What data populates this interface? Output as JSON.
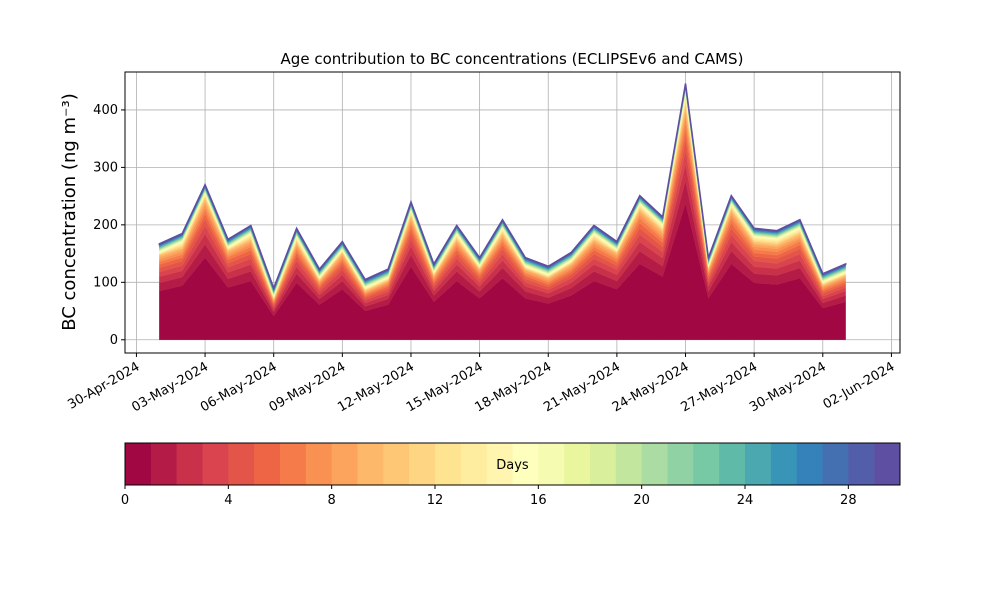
{
  "chart_data": {
    "type": "stacked_area",
    "title": "Age contribution to BC concentrations (ECLIPSEv6 and CAMS)",
    "y_label": "BC concentration (ng m⁻³)",
    "x": [
      "2024-05-01",
      "2024-05-02",
      "2024-05-03",
      "2024-05-04",
      "2024-05-05",
      "2024-05-06",
      "2024-05-07",
      "2024-05-08",
      "2024-05-09",
      "2024-05-10",
      "2024-05-11",
      "2024-05-12",
      "2024-05-13",
      "2024-05-14",
      "2024-05-15",
      "2024-05-16",
      "2024-05-17",
      "2024-05-18",
      "2024-05-19",
      "2024-05-20",
      "2024-05-21",
      "2024-05-22",
      "2024-05-23",
      "2024-05-24",
      "2024-05-25",
      "2024-05-26",
      "2024-05-27",
      "2024-05-28",
      "2024-05-29",
      "2024-05-30",
      "2024-05-31"
    ],
    "xlim": [
      "2024-04-29T12:00Z",
      "2024-06-02T09:00Z"
    ],
    "xticks": [
      {
        "value": "2024-04-30",
        "label": "30-Apr-2024"
      },
      {
        "value": "2024-05-03",
        "label": "03-May-2024"
      },
      {
        "value": "2024-05-06",
        "label": "06-May-2024"
      },
      {
        "value": "2024-05-09",
        "label": "09-May-2024"
      },
      {
        "value": "2024-05-12",
        "label": "12-May-2024"
      },
      {
        "value": "2024-05-15",
        "label": "15-May-2024"
      },
      {
        "value": "2024-05-18",
        "label": "18-May-2024"
      },
      {
        "value": "2024-05-21",
        "label": "21-May-2024"
      },
      {
        "value": "2024-05-24",
        "label": "24-May-2024"
      },
      {
        "value": "2024-05-27",
        "label": "27-May-2024"
      },
      {
        "value": "2024-05-30",
        "label": "30-May-2024"
      },
      {
        "value": "2024-06-02",
        "label": "02-Jun-2024"
      }
    ],
    "ylim": [
      -23,
      466
    ],
    "yticks": [
      0,
      100,
      200,
      300,
      400
    ],
    "grid": true,
    "series": [
      {
        "color": "#a00743",
        "values": [
          85,
          94,
          143,
          91,
          102,
          41,
          99,
          61,
          88,
          50,
          61,
          127,
          66,
          102,
          72,
          107,
          72,
          63,
          77,
          102,
          88,
          132,
          110,
          237,
          72,
          132,
          99,
          96,
          107,
          55,
          66
        ]
      },
      {
        "color": "#b41b47",
        "values": [
          14,
          15,
          23,
          15,
          17,
          7,
          16,
          10,
          14,
          8,
          10,
          21,
          11,
          17,
          12,
          18,
          12,
          10,
          13,
          17,
          14,
          22,
          18,
          39,
          12,
          22,
          16,
          16,
          18,
          9,
          11
        ]
      },
      {
        "color": "#c9314b",
        "values": [
          11,
          11,
          18,
          11,
          12,
          5,
          12,
          7,
          11,
          6,
          7,
          15,
          8,
          12,
          9,
          13,
          9,
          8,
          9,
          12,
          11,
          16,
          14,
          29,
          9,
          16,
          12,
          12,
          13,
          7,
          8
        ]
      },
      {
        "color": "#d9444f",
        "values": [
          8,
          9,
          14,
          9,
          10,
          4,
          10,
          6,
          9,
          5,
          6,
          12,
          6,
          10,
          7,
          11,
          7,
          6,
          8,
          10,
          9,
          13,
          11,
          23,
          7,
          13,
          10,
          9,
          11,
          5,
          6
        ]
      },
      {
        "color": "#e45549",
        "values": [
          7,
          8,
          12,
          7,
          8,
          3,
          8,
          5,
          7,
          4,
          5,
          10,
          5,
          8,
          6,
          9,
          6,
          5,
          6,
          8,
          7,
          11,
          9,
          19,
          6,
          11,
          8,
          8,
          9,
          5,
          5
        ]
      },
      {
        "color": "#ee6545",
        "values": [
          6,
          6,
          9,
          6,
          7,
          3,
          6,
          4,
          6,
          3,
          4,
          8,
          4,
          7,
          5,
          7,
          5,
          4,
          5,
          7,
          6,
          9,
          7,
          15,
          5,
          9,
          6,
          6,
          7,
          4,
          4
        ]
      },
      {
        "color": "#f67b4a",
        "values": [
          5,
          5,
          8,
          5,
          6,
          2,
          6,
          3,
          5,
          3,
          3,
          7,
          4,
          6,
          4,
          6,
          4,
          4,
          4,
          6,
          5,
          8,
          6,
          14,
          4,
          8,
          6,
          6,
          6,
          3,
          4
        ]
      },
      {
        "color": "#f99153",
        "values": [
          4,
          5,
          7,
          4,
          5,
          2,
          5,
          3,
          4,
          2,
          3,
          6,
          3,
          5,
          3,
          5,
          3,
          3,
          4,
          5,
          4,
          6,
          5,
          12,
          3,
          6,
          5,
          5,
          5,
          3,
          3
        ]
      },
      {
        "color": "#fca45e",
        "values": [
          4,
          4,
          6,
          4,
          4,
          2,
          4,
          2,
          4,
          2,
          2,
          5,
          3,
          4,
          3,
          4,
          3,
          3,
          3,
          4,
          4,
          5,
          5,
          10,
          3,
          5,
          4,
          4,
          4,
          2,
          3
        ]
      },
      {
        "color": "#fdb86a",
        "values": [
          3,
          3,
          5,
          3,
          3,
          1,
          3,
          2,
          3,
          2,
          2,
          4,
          2,
          3,
          2,
          4,
          2,
          2,
          3,
          3,
          3,
          4,
          4,
          8,
          2,
          4,
          3,
          3,
          4,
          2,
          2
        ]
      },
      {
        "color": "#fdc776",
        "values": [
          1,
          2,
          2,
          1,
          2,
          1,
          2,
          1,
          1,
          1,
          1,
          2,
          1,
          2,
          1,
          2,
          1,
          1,
          1,
          2,
          1,
          2,
          2,
          4,
          1,
          2,
          2,
          2,
          2,
          1,
          1
        ]
      },
      {
        "color": "#fed683",
        "values": [
          1,
          2,
          2,
          1,
          2,
          1,
          2,
          1,
          1,
          1,
          1,
          2,
          1,
          2,
          1,
          2,
          1,
          1,
          1,
          2,
          1,
          2,
          2,
          4,
          1,
          2,
          2,
          2,
          2,
          1,
          1
        ]
      },
      {
        "color": "#fee391",
        "values": [
          1,
          2,
          2,
          1,
          2,
          1,
          2,
          1,
          1,
          1,
          1,
          2,
          1,
          2,
          1,
          2,
          1,
          1,
          1,
          2,
          1,
          2,
          2,
          4,
          1,
          2,
          2,
          2,
          2,
          1,
          1
        ]
      },
      {
        "color": "#feec9f",
        "values": [
          1,
          2,
          2,
          1,
          2,
          1,
          2,
          1,
          1,
          1,
          1,
          2,
          1,
          2,
          1,
          2,
          1,
          1,
          1,
          2,
          1,
          2,
          2,
          4,
          1,
          2,
          2,
          2,
          2,
          1,
          1
        ]
      },
      {
        "color": "#fff5ae",
        "values": [
          1,
          2,
          2,
          1,
          2,
          1,
          2,
          1,
          1,
          1,
          1,
          2,
          1,
          2,
          1,
          2,
          1,
          1,
          1,
          2,
          1,
          2,
          2,
          4,
          1,
          2,
          2,
          2,
          2,
          1,
          1
        ]
      },
      {
        "color": "#fefebd",
        "values": [
          1,
          1,
          1,
          1,
          1,
          1,
          1,
          1,
          1,
          1,
          1,
          1,
          1,
          1,
          1,
          1,
          1,
          1,
          1,
          1,
          1,
          1,
          1,
          2,
          1,
          1,
          1,
          1,
          1,
          1,
          1
        ]
      },
      {
        "color": "#f6fbb2",
        "values": [
          1,
          1,
          1,
          1,
          1,
          1,
          1,
          1,
          1,
          1,
          1,
          1,
          1,
          1,
          1,
          1,
          1,
          1,
          1,
          1,
          1,
          1,
          1,
          2,
          1,
          1,
          1,
          1,
          1,
          1,
          1
        ]
      },
      {
        "color": "#eaf69e",
        "values": [
          1,
          1,
          1,
          1,
          1,
          1,
          1,
          1,
          1,
          1,
          1,
          1,
          1,
          1,
          1,
          1,
          1,
          1,
          1,
          1,
          1,
          1,
          1,
          2,
          1,
          1,
          1,
          1,
          1,
          1,
          1
        ]
      },
      {
        "color": "#d9ef9b",
        "values": [
          1,
          1,
          1,
          1,
          1,
          1,
          1,
          1,
          1,
          1,
          1,
          1,
          1,
          1,
          1,
          1,
          1,
          1,
          1,
          1,
          1,
          1,
          1,
          2,
          1,
          1,
          1,
          1,
          1,
          1,
          1
        ]
      },
      {
        "color": "#c3e69f",
        "values": [
          1,
          1,
          1,
          1,
          1,
          1,
          1,
          1,
          1,
          1,
          1,
          1,
          1,
          1,
          1,
          1,
          1,
          1,
          1,
          1,
          1,
          1,
          1,
          2,
          1,
          1,
          1,
          1,
          1,
          1,
          1
        ]
      },
      {
        "color": "#aadca4",
        "values": [
          1,
          1,
          1,
          1,
          1,
          1,
          1,
          1,
          1,
          1,
          1,
          1,
          1,
          1,
          1,
          1,
          1,
          1,
          1,
          1,
          1,
          1,
          1,
          1,
          1,
          1,
          1,
          1,
          1,
          1,
          1
        ]
      },
      {
        "color": "#91d2a4",
        "values": [
          1,
          1,
          1,
          1,
          1,
          1,
          1,
          1,
          1,
          1,
          1,
          1,
          1,
          1,
          1,
          1,
          1,
          1,
          1,
          1,
          1,
          1,
          1,
          1,
          1,
          1,
          1,
          1,
          1,
          1,
          1
        ]
      },
      {
        "color": "#77c8a4",
        "values": [
          1,
          1,
          1,
          1,
          1,
          1,
          1,
          1,
          1,
          1,
          1,
          1,
          1,
          1,
          1,
          1,
          1,
          1,
          1,
          1,
          1,
          1,
          1,
          1,
          1,
          1,
          1,
          1,
          1,
          1,
          1
        ]
      },
      {
        "color": "#5fbaa8",
        "values": [
          1,
          1,
          1,
          1,
          1,
          1,
          1,
          1,
          1,
          1,
          1,
          1,
          1,
          1,
          1,
          1,
          1,
          1,
          1,
          1,
          1,
          1,
          1,
          1,
          1,
          1,
          1,
          1,
          1,
          1,
          1
        ]
      },
      {
        "color": "#4ba8b0",
        "values": [
          1,
          1,
          1,
          1,
          1,
          1,
          1,
          1,
          1,
          1,
          1,
          1,
          1,
          1,
          1,
          1,
          1,
          1,
          1,
          1,
          1,
          1,
          1,
          1,
          1,
          1,
          1,
          1,
          1,
          1,
          1
        ]
      },
      {
        "color": "#3995b8",
        "values": [
          1,
          1,
          1,
          1,
          1,
          1,
          1,
          1,
          1,
          1,
          1,
          1,
          1,
          1,
          1,
          1,
          1,
          1,
          1,
          1,
          1,
          1,
          1,
          1,
          1,
          1,
          1,
          1,
          1,
          1,
          1
        ]
      },
      {
        "color": "#3582ba",
        "values": [
          1,
          1,
          1,
          1,
          1,
          1,
          1,
          1,
          1,
          1,
          1,
          1,
          1,
          1,
          1,
          1,
          1,
          1,
          1,
          1,
          1,
          1,
          1,
          1,
          1,
          1,
          1,
          1,
          1,
          1,
          1
        ]
      },
      {
        "color": "#4470b1",
        "values": [
          1,
          1,
          1,
          1,
          1,
          1,
          1,
          1,
          1,
          1,
          1,
          1,
          1,
          1,
          1,
          1,
          1,
          1,
          1,
          1,
          1,
          1,
          1,
          1,
          1,
          1,
          1,
          1,
          1,
          1,
          1
        ]
      },
      {
        "color": "#525ea9",
        "values": [
          1,
          1,
          1,
          1,
          1,
          1,
          1,
          1,
          1,
          1,
          1,
          1,
          1,
          1,
          1,
          1,
          1,
          1,
          1,
          1,
          1,
          1,
          1,
          1,
          1,
          1,
          1,
          1,
          1,
          1,
          1
        ]
      },
      {
        "color": "#5e4fa2",
        "values": [
          1,
          1,
          1,
          1,
          1,
          1,
          1,
          1,
          1,
          1,
          1,
          1,
          1,
          1,
          1,
          1,
          1,
          1,
          1,
          1,
          1,
          1,
          1,
          1,
          1,
          1,
          1,
          1,
          1,
          1,
          1
        ]
      }
    ],
    "colorbar": {
      "label": "Days",
      "lim": [
        0,
        30
      ],
      "ticks": [
        0,
        4,
        8,
        12,
        16,
        20,
        24,
        28
      ]
    }
  }
}
